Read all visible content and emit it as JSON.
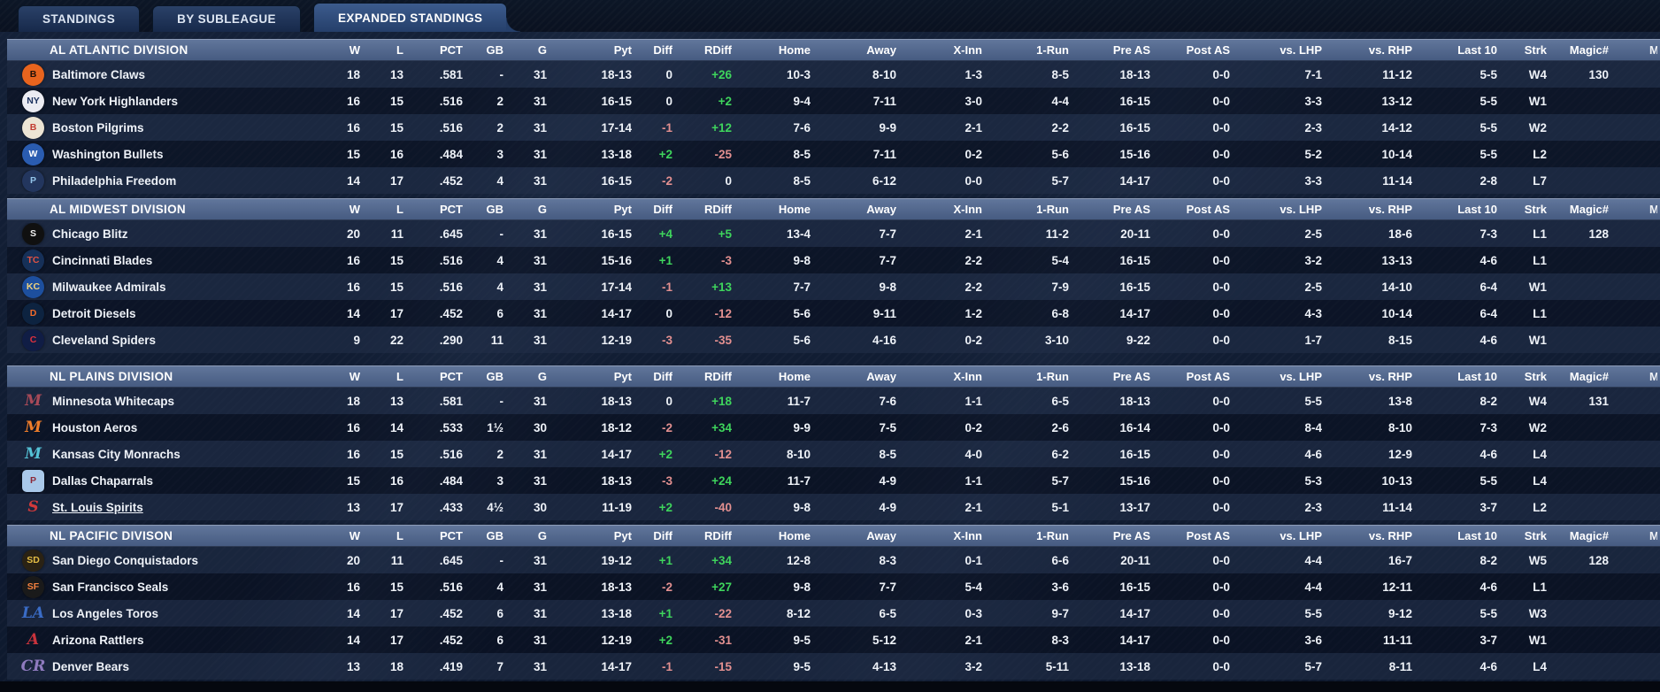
{
  "colors": {
    "positive": "#3ed45c",
    "negative": "#e39090",
    "accent_header": "#536896"
  },
  "edge_fragment": "M",
  "tabs": [
    {
      "label": "STANDINGS",
      "active": false
    },
    {
      "label": "BY SUBLEAGUE",
      "active": false
    },
    {
      "label": "EXPANDED STANDINGS",
      "active": true
    }
  ],
  "columns": [
    "W",
    "L",
    "PCT",
    "GB",
    "G",
    "Pyt",
    "Diff",
    "RDiff",
    "Home",
    "Away",
    "X-Inn",
    "1-Run",
    "Pre AS",
    "Post AS",
    "vs. LHP",
    "vs. RHP",
    "Last 10",
    "Strk",
    "Magic#"
  ],
  "sections": [
    {
      "division": "AL ATLANTIC DIVISION",
      "gap_before": false,
      "teams": [
        {
          "name": "Baltimore Claws",
          "logo": {
            "text": "B",
            "bg": "#e8641e",
            "fg": "#201008",
            "shape": "circle"
          },
          "values": [
            "18",
            "13",
            ".581",
            "-",
            "31",
            "18-13",
            "0",
            "+26",
            "10-3",
            "8-10",
            "1-3",
            "8-5",
            "18-13",
            "0-0",
            "7-1",
            "11-12",
            "5-5",
            "W4",
            "130"
          ]
        },
        {
          "name": "New York Highlanders",
          "logo": {
            "text": "NY",
            "bg": "#ececf2",
            "fg": "#1f3460",
            "shape": "circle"
          },
          "values": [
            "16",
            "15",
            ".516",
            "2",
            "31",
            "16-15",
            "0",
            "+2",
            "9-4",
            "7-11",
            "3-0",
            "4-4",
            "16-15",
            "0-0",
            "3-3",
            "13-12",
            "5-5",
            "W1",
            ""
          ]
        },
        {
          "name": "Boston Pilgrims",
          "logo": {
            "text": "B",
            "bg": "#ece4d4",
            "fg": "#c23b30",
            "shape": "circle"
          },
          "values": [
            "16",
            "15",
            ".516",
            "2",
            "31",
            "17-14",
            "-1",
            "+12",
            "7-6",
            "9-9",
            "2-1",
            "2-2",
            "16-15",
            "0-0",
            "2-3",
            "14-12",
            "5-5",
            "W2",
            ""
          ]
        },
        {
          "name": "Washington Bullets",
          "logo": {
            "text": "W",
            "bg": "#2a5cb0",
            "fg": "#ffffff",
            "shape": "circle"
          },
          "values": [
            "15",
            "16",
            ".484",
            "3",
            "31",
            "13-18",
            "+2",
            "-25",
            "8-5",
            "7-11",
            "0-2",
            "5-6",
            "15-16",
            "0-0",
            "5-2",
            "10-14",
            "5-5",
            "L2",
            ""
          ]
        },
        {
          "name": "Philadelphia Freedom",
          "logo": {
            "text": "P",
            "bg": "#23365e",
            "fg": "#93c4ea",
            "shape": "circle"
          },
          "values": [
            "14",
            "17",
            ".452",
            "4",
            "31",
            "16-15",
            "-2",
            "0",
            "8-5",
            "6-12",
            "0-0",
            "5-7",
            "14-17",
            "0-0",
            "3-3",
            "11-14",
            "2-8",
            "L7",
            ""
          ]
        }
      ]
    },
    {
      "division": "AL MIDWEST DIVISION",
      "gap_before": false,
      "teams": [
        {
          "name": "Chicago Blitz",
          "logo": {
            "text": "S",
            "bg": "#101010",
            "fg": "#f2f2f2",
            "shape": "circle"
          },
          "values": [
            "20",
            "11",
            ".645",
            "-",
            "31",
            "16-15",
            "+4",
            "+5",
            "13-4",
            "7-7",
            "2-1",
            "11-2",
            "20-11",
            "0-0",
            "2-5",
            "18-6",
            "7-3",
            "L1",
            "128"
          ]
        },
        {
          "name": "Cincinnati Blades",
          "logo": {
            "text": "TC",
            "bg": "#163058",
            "fg": "#df5243",
            "shape": "circle"
          },
          "values": [
            "16",
            "15",
            ".516",
            "4",
            "31",
            "15-16",
            "+1",
            "-3",
            "9-8",
            "7-7",
            "2-2",
            "5-4",
            "16-15",
            "0-0",
            "3-2",
            "13-13",
            "4-6",
            "L1",
            ""
          ]
        },
        {
          "name": "Milwaukee Admirals",
          "logo": {
            "text": "KC",
            "bg": "#1d4f9e",
            "fg": "#f1d37c",
            "shape": "circle"
          },
          "values": [
            "16",
            "15",
            ".516",
            "4",
            "31",
            "17-14",
            "-1",
            "+13",
            "7-7",
            "9-8",
            "2-2",
            "7-9",
            "16-15",
            "0-0",
            "2-5",
            "14-10",
            "6-4",
            "W1",
            ""
          ]
        },
        {
          "name": "Detroit Diesels",
          "logo": {
            "text": "D",
            "bg": "#0d2340",
            "fg": "#f26a2a",
            "shape": "circle"
          },
          "values": [
            "14",
            "17",
            ".452",
            "6",
            "31",
            "14-17",
            "0",
            "-12",
            "5-6",
            "9-11",
            "1-2",
            "6-8",
            "14-17",
            "0-0",
            "4-3",
            "10-14",
            "6-4",
            "L1",
            ""
          ]
        },
        {
          "name": "Cleveland Spiders",
          "logo": {
            "text": "C",
            "bg": "#101d45",
            "fg": "#e0313e",
            "shape": "circle"
          },
          "values": [
            "9",
            "22",
            ".290",
            "11",
            "31",
            "12-19",
            "-3",
            "-35",
            "5-6",
            "4-16",
            "0-2",
            "3-10",
            "9-22",
            "0-0",
            "1-7",
            "8-15",
            "4-6",
            "W1",
            ""
          ]
        }
      ]
    },
    {
      "division": "NL PLAINS DIVISION",
      "gap_before": true,
      "teams": [
        {
          "name": "Minnesota Whitecaps",
          "logo": {
            "text": "M",
            "bg": "",
            "fg": "#a84a58",
            "shape": "script"
          },
          "values": [
            "18",
            "13",
            ".581",
            "-",
            "31",
            "18-13",
            "0",
            "+18",
            "11-7",
            "7-6",
            "1-1",
            "6-5",
            "18-13",
            "0-0",
            "5-5",
            "13-8",
            "8-2",
            "W4",
            "131"
          ]
        },
        {
          "name": "Houston Aeros",
          "logo": {
            "text": "M",
            "bg": "",
            "fg": "#ef7d2a",
            "shape": "script"
          },
          "values": [
            "16",
            "14",
            ".533",
            "1½",
            "30",
            "18-12",
            "-2",
            "+34",
            "9-9",
            "7-5",
            "0-2",
            "2-6",
            "16-14",
            "0-0",
            "8-4",
            "8-10",
            "7-3",
            "W2",
            ""
          ]
        },
        {
          "name": "Kansas City Monrachs",
          "logo": {
            "text": "M",
            "bg": "",
            "fg": "#54c2d6",
            "shape": "script"
          },
          "values": [
            "16",
            "15",
            ".516",
            "2",
            "31",
            "14-17",
            "+2",
            "-12",
            "8-10",
            "8-5",
            "4-0",
            "6-2",
            "16-15",
            "0-0",
            "4-6",
            "12-9",
            "4-6",
            "L4",
            ""
          ]
        },
        {
          "name": "Dallas Chaparrals",
          "logo": {
            "text": "P",
            "bg": "#a9c8e9",
            "fg": "#8c2838",
            "shape": "square"
          },
          "values": [
            "15",
            "16",
            ".484",
            "3",
            "31",
            "18-13",
            "-3",
            "+24",
            "11-7",
            "4-9",
            "1-1",
            "5-7",
            "15-16",
            "0-0",
            "5-3",
            "10-13",
            "5-5",
            "L4",
            ""
          ]
        },
        {
          "name": "St. Louis Spirits",
          "user_team": true,
          "logo": {
            "text": "S",
            "bg": "",
            "fg": "#d2393b",
            "shape": "script"
          },
          "values": [
            "13",
            "17",
            ".433",
            "4½",
            "30",
            "11-19",
            "+2",
            "-40",
            "9-8",
            "4-9",
            "2-1",
            "5-1",
            "13-17",
            "0-0",
            "2-3",
            "11-14",
            "3-7",
            "L2",
            ""
          ]
        }
      ]
    },
    {
      "division": "NL PACIFIC DIVISON",
      "gap_before": false,
      "teams": [
        {
          "name": "San Diego Conquistadors",
          "logo": {
            "text": "SD",
            "bg": "#2a2214",
            "fg": "#e3bc44",
            "shape": "circle"
          },
          "values": [
            "20",
            "11",
            ".645",
            "-",
            "31",
            "19-12",
            "+1",
            "+34",
            "12-8",
            "8-3",
            "0-1",
            "6-6",
            "20-11",
            "0-0",
            "4-4",
            "16-7",
            "8-2",
            "W5",
            "128"
          ]
        },
        {
          "name": "San Francisco Seals",
          "logo": {
            "text": "SF",
            "bg": "#1a1a1a",
            "fg": "#f3803f",
            "shape": "circle"
          },
          "values": [
            "16",
            "15",
            ".516",
            "4",
            "31",
            "18-13",
            "-2",
            "+27",
            "9-8",
            "7-7",
            "5-4",
            "3-6",
            "16-15",
            "0-0",
            "4-4",
            "12-11",
            "4-6",
            "L1",
            ""
          ]
        },
        {
          "name": "Los Angeles Toros",
          "logo": {
            "text": "LA",
            "bg": "",
            "fg": "#3a6cc6",
            "shape": "script"
          },
          "values": [
            "14",
            "17",
            ".452",
            "6",
            "31",
            "13-18",
            "+1",
            "-22",
            "8-12",
            "6-5",
            "0-3",
            "9-7",
            "14-17",
            "0-0",
            "5-5",
            "9-12",
            "5-5",
            "W3",
            ""
          ]
        },
        {
          "name": "Arizona Rattlers",
          "logo": {
            "text": "A",
            "bg": "",
            "fg": "#c8333c",
            "shape": "script"
          },
          "values": [
            "14",
            "17",
            ".452",
            "6",
            "31",
            "12-19",
            "+2",
            "-31",
            "9-5",
            "5-12",
            "2-1",
            "8-3",
            "14-17",
            "0-0",
            "3-6",
            "11-11",
            "3-7",
            "W1",
            ""
          ]
        },
        {
          "name": "Denver Bears",
          "logo": {
            "text": "CR",
            "bg": "",
            "fg": "#8f7bbf",
            "shape": "script"
          },
          "values": [
            "13",
            "18",
            ".419",
            "7",
            "31",
            "14-17",
            "-1",
            "-15",
            "9-5",
            "4-13",
            "3-2",
            "5-11",
            "13-18",
            "0-0",
            "5-7",
            "8-11",
            "4-6",
            "L4",
            ""
          ]
        }
      ]
    }
  ]
}
